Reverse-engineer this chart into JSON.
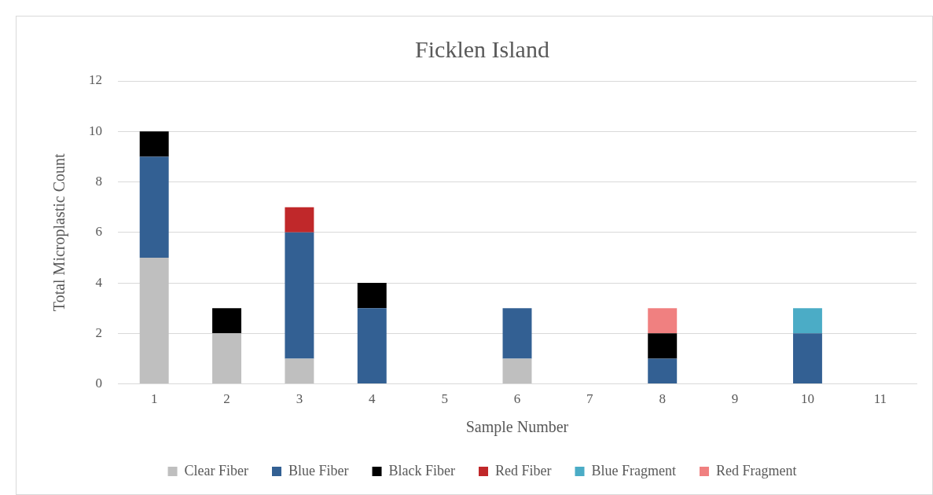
{
  "chart_data": {
    "type": "bar",
    "title": "Ficklen Island",
    "xlabel": "Sample Number",
    "ylabel": "Total Microplastic Count",
    "categories": [
      "1",
      "2",
      "3",
      "4",
      "5",
      "6",
      "7",
      "8",
      "9",
      "10",
      "11"
    ],
    "stacked": true,
    "ylim": [
      0,
      12
    ],
    "yticks": [
      0,
      2,
      4,
      6,
      8,
      10,
      12
    ],
    "grid": "y",
    "legend": "bottom",
    "series": [
      {
        "name": "Clear Fiber",
        "color": "#bfbfbf",
        "values": [
          5,
          2,
          1,
          0,
          0,
          1,
          0,
          0,
          0,
          0,
          0
        ]
      },
      {
        "name": "Blue Fiber",
        "color": "#336093",
        "values": [
          4,
          0,
          5,
          3,
          0,
          2,
          0,
          1,
          0,
          2,
          0
        ]
      },
      {
        "name": "Black Fiber",
        "color": "#000000",
        "values": [
          1,
          1,
          0,
          1,
          0,
          0,
          0,
          1,
          0,
          0,
          0
        ]
      },
      {
        "name": "Red Fiber",
        "color": "#c0282a",
        "values": [
          0,
          0,
          1,
          0,
          0,
          0,
          0,
          0,
          0,
          0,
          0
        ]
      },
      {
        "name": "Blue Fragment",
        "color": "#4bacc6",
        "values": [
          0,
          0,
          0,
          0,
          0,
          0,
          0,
          0,
          0,
          1,
          0
        ]
      },
      {
        "name": "Red Fragment",
        "color": "#f08080",
        "values": [
          0,
          0,
          0,
          0,
          0,
          0,
          0,
          1,
          0,
          0,
          0
        ]
      }
    ]
  }
}
